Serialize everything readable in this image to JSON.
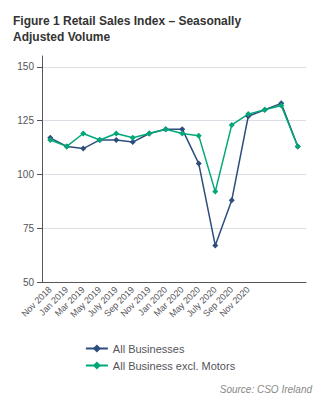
{
  "chart_data": {
    "type": "line",
    "title": "Figure 1 Retail Sales Index – Seasonally\nAdjusted Volume",
    "categories": [
      "Nov 2018",
      "Jan 2019",
      "Mar 2019",
      "May 2019",
      "July 2019",
      "Sep 2019",
      "Nov 2019",
      "Jan 2020",
      "Mar 2020",
      "May 2020",
      "July 2020",
      "Sep 2020",
      "Nov 2020",
      null,
      null,
      null
    ],
    "series": [
      {
        "name": "All Businesses",
        "color": "#2d4d7c",
        "marker": "diamond",
        "line_style": "solid",
        "values": [
          117,
          113,
          112,
          116,
          116,
          115,
          119,
          121,
          121,
          105,
          67,
          88,
          127,
          130,
          133,
          113
        ]
      },
      {
        "name": "All Business excl. Motors",
        "color": "#00a878",
        "marker": "diamond",
        "line_style": "solid",
        "values": [
          116,
          113,
          119,
          116,
          119,
          117,
          119,
          121,
          119,
          118,
          92,
          123,
          128,
          130,
          132,
          113
        ]
      }
    ],
    "ylim": [
      50,
      155
    ],
    "yticks": [
      50,
      75,
      100,
      125,
      150
    ],
    "grid": true,
    "legend": "bottom",
    "annotations": [
      "Source: CSO Ireland"
    ]
  }
}
